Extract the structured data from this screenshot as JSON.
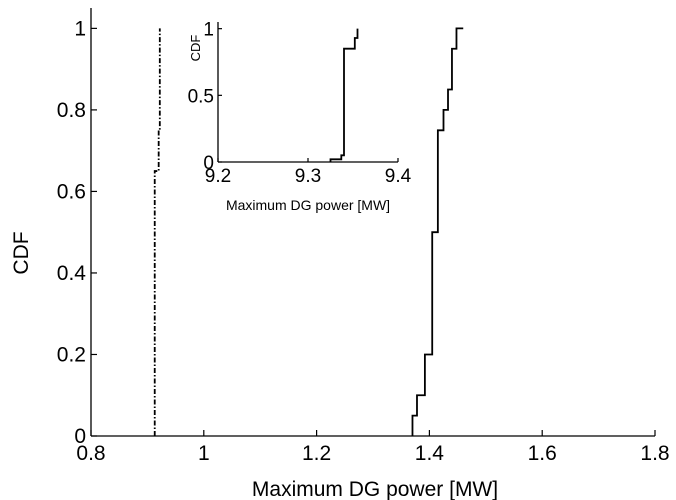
{
  "chart_data": [
    {
      "type": "line",
      "title": "",
      "xlabel": "Maximum DG power [MW]",
      "ylabel": "CDF",
      "xlim": [
        0.8,
        1.8
      ],
      "ylim": [
        0,
        1.05
      ],
      "xticks": [
        "0.8",
        "1",
        "1.2",
        "1.4",
        "1.6",
        "1.8"
      ],
      "yticks": [
        "0",
        "0.2",
        "0.4",
        "0.6",
        "0.8",
        "1"
      ],
      "grid": false,
      "legend": "none",
      "series": [
        {
          "style": "dash-dot",
          "color": "#000000",
          "x": [
            0.913,
            0.913,
            0.92,
            0.92,
            0.922,
            0.922
          ],
          "y": [
            0.0,
            0.65,
            0.65,
            0.75,
            0.75,
            1.0
          ]
        },
        {
          "style": "solid",
          "color": "#000000",
          "x": [
            1.37,
            1.37,
            1.378,
            1.378,
            1.392,
            1.392,
            1.405,
            1.405,
            1.415,
            1.415,
            1.425,
            1.425,
            1.433,
            1.433,
            1.44,
            1.44,
            1.448,
            1.448,
            1.455,
            1.455,
            1.46,
            1.46
          ],
          "y": [
            0.0,
            0.05,
            0.05,
            0.1,
            0.1,
            0.2,
            0.2,
            0.5,
            0.5,
            0.75,
            0.75,
            0.8,
            0.8,
            0.85,
            0.85,
            0.95,
            0.95,
            1.0,
            1.0,
            1.0,
            1.0,
            1.0
          ]
        }
      ]
    },
    {
      "type": "line",
      "title": "",
      "xlabel": "Maximum DG power [MW]",
      "ylabel": "CDF",
      "xlim": [
        9.2,
        9.4
      ],
      "ylim": [
        0,
        1.05
      ],
      "xticks": [
        "9.2",
        "9.3",
        "9.4"
      ],
      "yticks": [
        "0",
        "0.5",
        "1"
      ],
      "grid": false,
      "legend": "none",
      "series": [
        {
          "style": "solid",
          "color": "#000000",
          "x": [
            9.325,
            9.325,
            9.337,
            9.337,
            9.34,
            9.34,
            9.352,
            9.352,
            9.355,
            9.355
          ],
          "y": [
            0.0,
            0.02,
            0.02,
            0.05,
            0.05,
            0.85,
            0.85,
            0.93,
            0.93,
            1.0
          ]
        }
      ]
    }
  ]
}
